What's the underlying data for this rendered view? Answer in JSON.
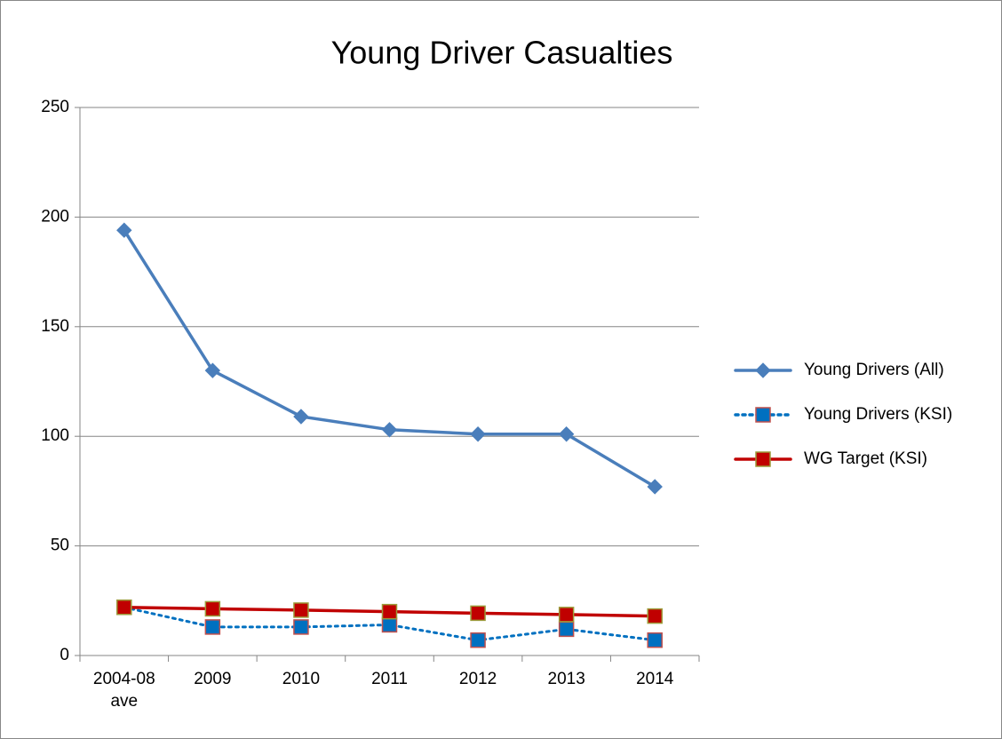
{
  "chart_data": {
    "type": "line",
    "title": "Young Driver Casualties",
    "categories": [
      "2004-08 ave",
      "2009",
      "2010",
      "2011",
      "2012",
      "2013",
      "2014"
    ],
    "series": [
      {
        "name": "Young Drivers (All)",
        "color": "#4a7ebb",
        "marker": "diamond",
        "dash": "solid",
        "values": [
          194,
          130,
          109,
          103,
          101,
          101,
          77
        ]
      },
      {
        "name": "Young Drivers (KSI)",
        "color": "#0070c0",
        "marker": "square",
        "dash": "dotted",
        "values": [
          22,
          13,
          13,
          14,
          7,
          12,
          7
        ]
      },
      {
        "name": "WG Target (KSI)",
        "color": "#c00000",
        "marker": "square",
        "dash": "solid",
        "values": [
          22,
          21.3,
          20.7,
          20,
          19.3,
          18.7,
          18
        ]
      }
    ],
    "ylim": [
      0,
      250
    ],
    "yticks": [
      0,
      50,
      100,
      150,
      200,
      250
    ],
    "grid": true,
    "legend": "right"
  }
}
